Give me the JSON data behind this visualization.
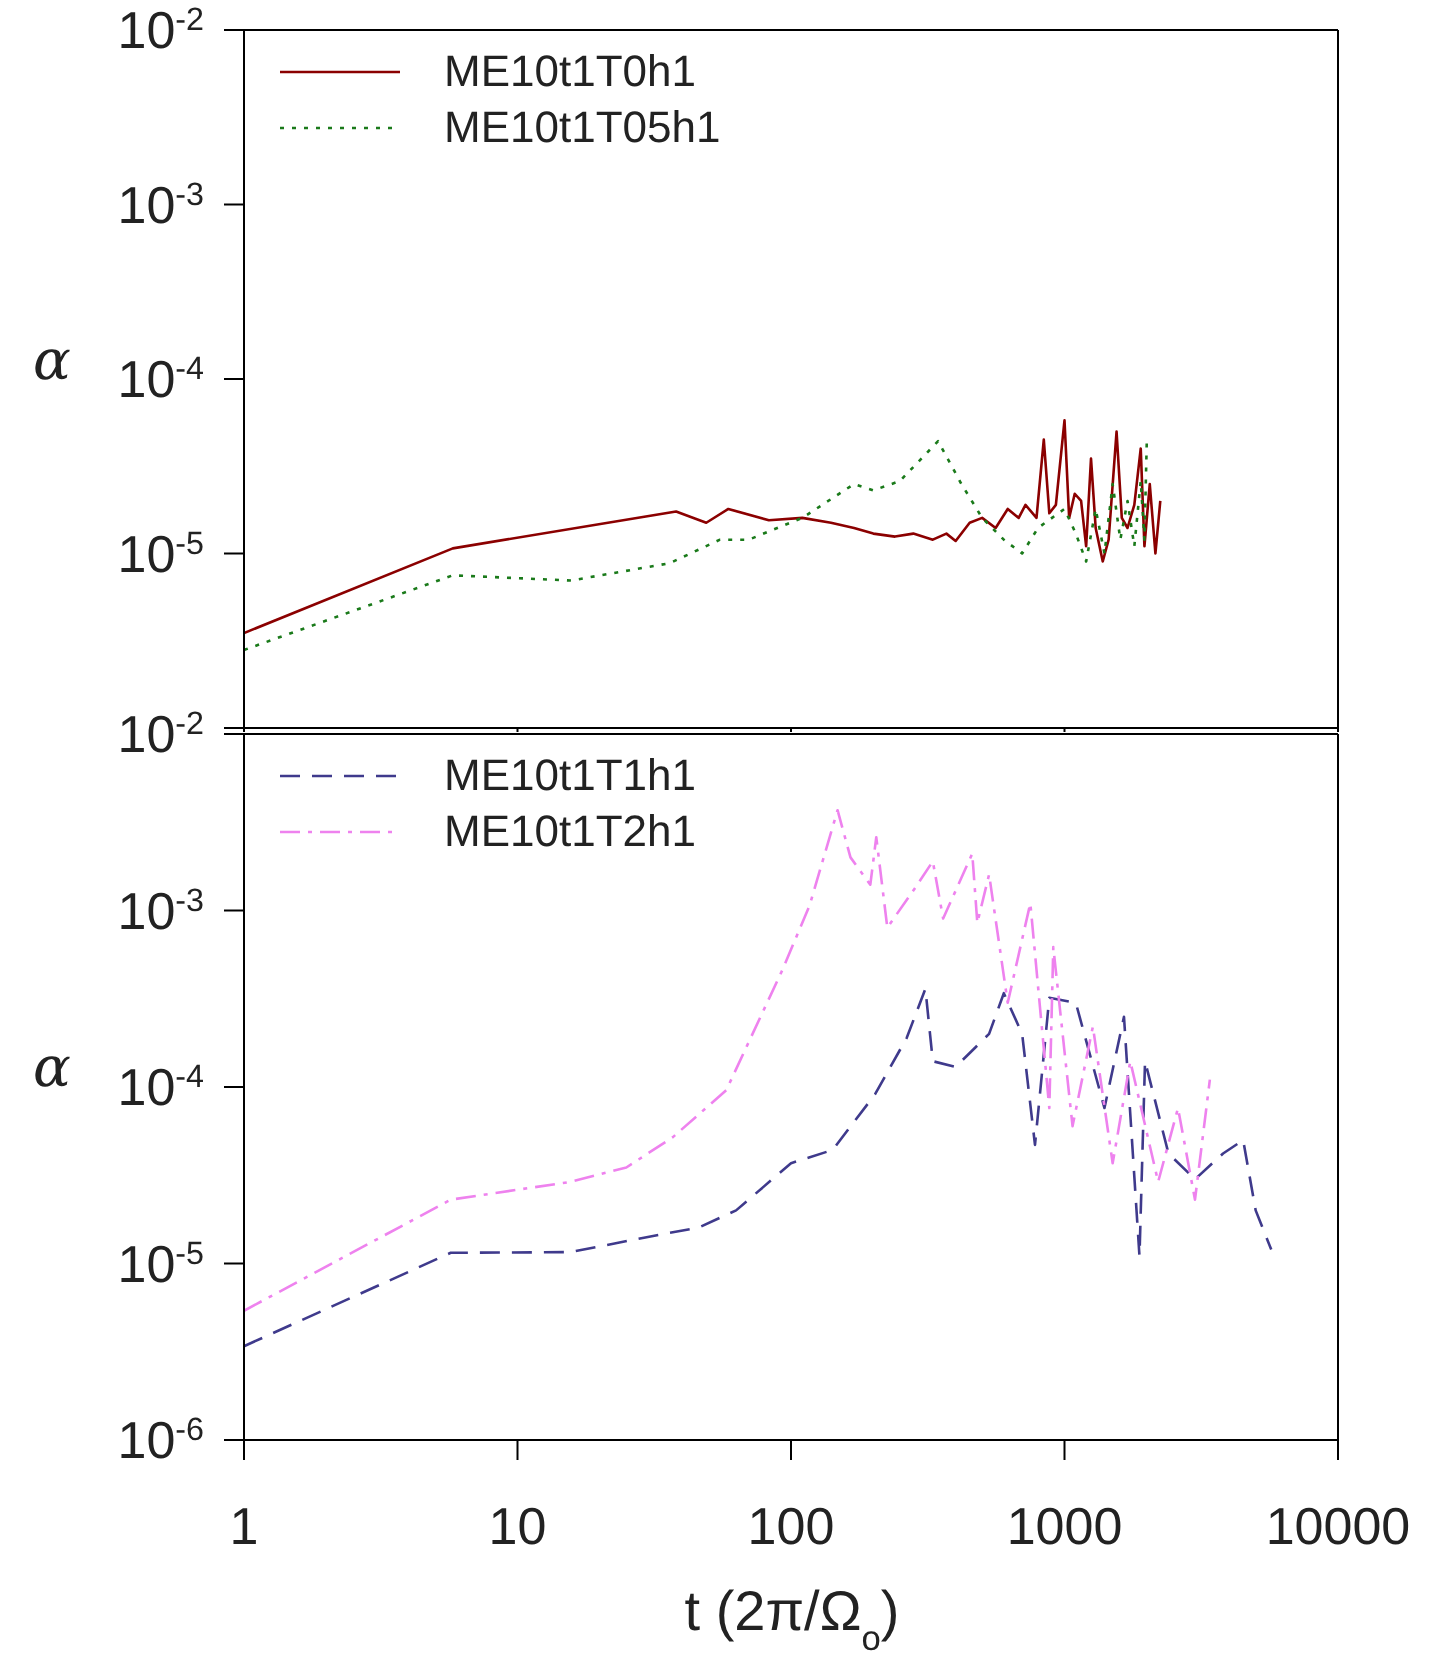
{
  "chart_data": [
    {
      "type": "line",
      "ylabel": "α",
      "log": "xy",
      "xlim": [
        1,
        10000
      ],
      "xticks": [
        1,
        10,
        100,
        1000,
        10000
      ],
      "ylim": [
        1e-06,
        0.01
      ],
      "yticks": [
        {
          "value": 1e-06,
          "label": null
        },
        {
          "value": 1e-05,
          "label": "10$^{-5}$"
        },
        {
          "value": 0.0001,
          "label": "10$^{-4}$"
        },
        {
          "value": 0.001,
          "label": "10$^{-3}$"
        },
        {
          "value": 0.01,
          "label": "10$^{-2}$"
        }
      ],
      "tick_labels": "y",
      "legend": "top left",
      "grid": false,
      "series": [
        {
          "name": "ME10t1T0h1",
          "color": "#8b0000",
          "line_style": "solid",
          "x": [
            1,
            5.8,
            38,
            49,
            59,
            83,
            110,
            140,
            170,
            200,
            240,
            280,
            330,
            370,
            400,
            450,
            500,
            560,
            620,
            680,
            720,
            790,
            840,
            880,
            930,
            1000,
            1040,
            1090,
            1150,
            1200,
            1250,
            1300,
            1380,
            1450,
            1550,
            1620,
            1700,
            1800,
            1900,
            1960,
            2050,
            2150,
            2240
          ],
          "values": [
            3.5e-06,
            1.07e-05,
            1.74e-05,
            1.5e-05,
            1.8e-05,
            1.55e-05,
            1.6e-05,
            1.5e-05,
            1.4e-05,
            1.3e-05,
            1.25e-05,
            1.3e-05,
            1.2e-05,
            1.3e-05,
            1.18e-05,
            1.5e-05,
            1.6e-05,
            1.4e-05,
            1.8e-05,
            1.6e-05,
            1.9e-05,
            1.6e-05,
            4.5e-05,
            1.7e-05,
            1.9e-05,
            5.8e-05,
            1.6e-05,
            2.2e-05,
            2e-05,
            1.1e-05,
            3.5e-05,
            1.4e-05,
            9e-06,
            1.2e-05,
            5e-05,
            1.6e-05,
            1.4e-05,
            1.9e-05,
            4e-05,
            1.1e-05,
            2.5e-05,
            1e-05,
            2e-05
          ]
        },
        {
          "name": "ME10t1T05h1",
          "color": "#1a7a1a",
          "line_style": "dotted",
          "x": [
            1,
            5.8,
            15.7,
            36,
            55,
            70,
            110,
            170,
            200,
            250,
            345,
            420,
            500,
            600,
            700,
            800,
            900,
            1000,
            1100,
            1200,
            1300,
            1400,
            1500,
            1600,
            1700,
            1800,
            1900,
            1960,
            2000
          ],
          "values": [
            2.8e-06,
            7.5e-06,
            7e-06,
            8.8e-06,
            1.2e-05,
            1.2e-05,
            1.6e-05,
            2.5e-05,
            2.3e-05,
            2.6e-05,
            4.4e-05,
            2.5e-05,
            1.6e-05,
            1.2e-05,
            1e-05,
            1.4e-05,
            1.6e-05,
            1.8e-05,
            1.3e-05,
            9e-06,
            1.8e-05,
            1e-05,
            2.5e-05,
            1.2e-05,
            2e-05,
            1.1e-05,
            2.6e-05,
            1.2e-05,
            4.5e-05
          ]
        }
      ]
    },
    {
      "type": "line",
      "ylabel": "α",
      "xlabel": "t (2π/Ω$_{o}$)",
      "log": "xy",
      "xlim": [
        1,
        10000
      ],
      "xticks": [
        1,
        10,
        100,
        1000,
        10000
      ],
      "ylim": [
        1e-06,
        0.01
      ],
      "yticks": [
        {
          "value": 1e-06,
          "label": "10$^{-6}$"
        },
        {
          "value": 1e-05,
          "label": "10$^{-5}$"
        },
        {
          "value": 0.0001,
          "label": "10$^{-4}$"
        },
        {
          "value": 0.001,
          "label": "10$^{-3}$"
        },
        {
          "value": 0.01,
          "label": "10$^{-2}$"
        }
      ],
      "legend": "top left",
      "grid": false,
      "series": [
        {
          "name": "ME10t1T1h1",
          "color": "#3f3a8c",
          "line_style": "dashed",
          "x": [
            1,
            5.7,
            15.6,
            29,
            46,
            63,
            100,
            142,
            203,
            265,
            310,
            330,
            400,
            530,
            600,
            700,
            780,
            880,
            1100,
            1400,
            1650,
            1880,
            1970,
            2400,
            3000,
            3800,
            4500,
            5000,
            5700
          ],
          "values": [
            3.4e-06,
            1.15e-05,
            1.16e-05,
            1.4e-05,
            1.6e-05,
            2e-05,
            3.7e-05,
            4.4e-05,
            9.1e-05,
            0.00019,
            0.00036,
            0.00014,
            0.00013,
            0.0002,
            0.00034,
            0.0002,
            4.7e-05,
            0.00032,
            0.0003,
            7.6e-05,
            0.00025,
            1.1e-05,
            0.00014,
            4.2e-05,
            3e-05,
            4.2e-05,
            5e-05,
            2e-05,
            1.2e-05
          ]
        },
        {
          "name": "ME10t1T2h1",
          "color": "#ee82ee",
          "line_style": "dashdot",
          "x": [
            1,
            5.7,
            15.6,
            25,
            37,
            58,
            93,
            117,
            148,
            165,
            195,
            205,
            225,
            285,
            330,
            360,
            460,
            480,
            530,
            620,
            750,
            880,
            910,
            1070,
            1270,
            1500,
            1740,
            2200,
            2600,
            3000,
            3400
          ],
          "values": [
            5.4e-06,
            2.3e-05,
            2.9e-05,
            3.5e-05,
            5.2e-05,
            9.6e-05,
            0.00046,
            0.00107,
            0.0037,
            0.002,
            0.0014,
            0.0026,
            0.0008,
            0.00135,
            0.0019,
            0.0009,
            0.0021,
            0.00085,
            0.0016,
            0.0003,
            0.0011,
            7.6e-05,
            0.00062,
            6e-05,
            0.00022,
            3.7e-05,
            0.00014,
            2.9e-05,
            7.6e-05,
            2.3e-05,
            0.00011
          ]
        }
      ]
    }
  ]
}
